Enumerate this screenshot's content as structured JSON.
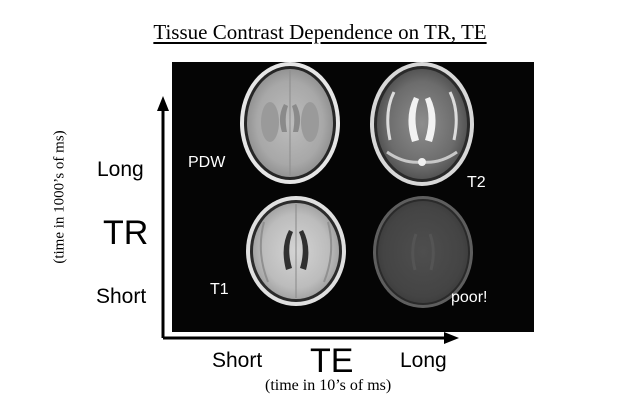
{
  "title": "Tissue Contrast Dependence on TR, TE",
  "y_axis": {
    "name": "TR",
    "long_label": "Long",
    "short_label": "Short",
    "unit_label": "(time in 1000’s of ms)"
  },
  "x_axis": {
    "name": "TE",
    "short_label": "Short",
    "long_label": "Long",
    "unit_label": "(time in 10’s of ms)"
  },
  "images": [
    {
      "label": "PDW",
      "tr": "Long",
      "te": "Short"
    },
    {
      "label": "T2",
      "tr": "Long",
      "te": "Long"
    },
    {
      "label": "T1",
      "tr": "Short",
      "te": "Short"
    },
    {
      "label": "poor!",
      "tr": "Short",
      "te": "Long"
    }
  ],
  "colors": {
    "panel_bg": "#050505",
    "axis": "#000000",
    "label_text": "#ffffff"
  }
}
